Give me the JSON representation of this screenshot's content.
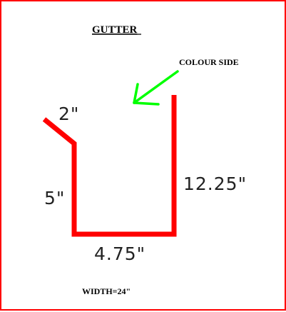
{
  "title": "GUTTER",
  "colour_side_label": "COLOUR SIDE",
  "dimensions": {
    "lip": "2\"",
    "back": "5\"",
    "bottom": "4.75\"",
    "front": "12.25\""
  },
  "width_label": "WIDTH=24\"",
  "colors": {
    "profile": "#ff0000",
    "arrow": "#00ff00",
    "border": "#ff0000",
    "background": "#ffffff"
  }
}
